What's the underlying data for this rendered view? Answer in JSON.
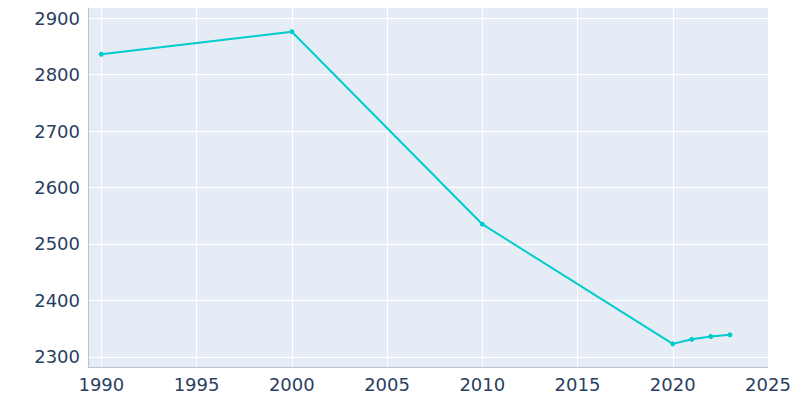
{
  "chart_data": {
    "type": "line",
    "x": [
      1990,
      2000,
      2010,
      2020,
      2021,
      2022,
      2023
    ],
    "values": [
      2836,
      2876,
      2535,
      2323,
      2331,
      2336,
      2339
    ],
    "color": "#00cccc",
    "marker": "circle",
    "xlim": [
      1989.3,
      2025
    ],
    "xticks": [
      1990,
      1995,
      2000,
      2005,
      2010,
      2015,
      2020,
      2025
    ],
    "ylim": [
      2282,
      2918
    ],
    "yticks": [
      2300,
      2400,
      2500,
      2600,
      2700,
      2800,
      2900
    ],
    "grid": true
  }
}
